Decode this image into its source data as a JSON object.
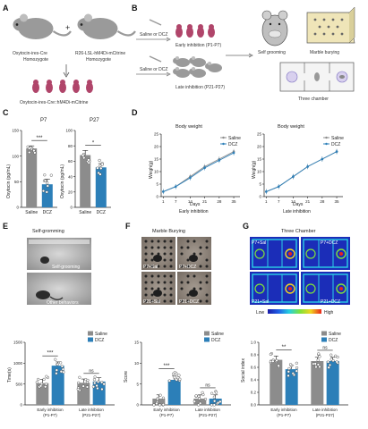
{
  "panel_letters": [
    "A",
    "B",
    "C",
    "D",
    "E",
    "F",
    "G"
  ],
  "A": {
    "mouse1": "Oxytocin-ires-Cre",
    "mouse1_sub": "Homozygote",
    "plus": "+",
    "mouse2": "R26-LSL-hM4Di-mCitrine",
    "mouse2_sub": "Homozygote",
    "offspring": "Oxytocin-ires-Cre::hM4Di-mCitrine"
  },
  "B": {
    "treat_early": "Saline or DCZ",
    "treat_late": "Saline or DCZ",
    "early_label": "Early inhibition (P1-P7)",
    "late_label": "Late inhibition (P21-P27)",
    "test1": "Self grooming",
    "test2": "Marble burying",
    "test3": "Three chamber"
  },
  "colors": {
    "saline": "#8c8c8c",
    "dcz": "#2c7fb8"
  },
  "C": {
    "ylabel": "Oxytocin (pg/mL)",
    "panels": [
      {
        "title": "P7",
        "sig": "***",
        "categories": [
          "Saline",
          "DCZ"
        ],
        "values": [
          115,
          45
        ],
        "errors": [
          5,
          10
        ],
        "ylim": [
          0,
          150
        ],
        "yticks": [
          "0",
          "50",
          "100",
          "150"
        ]
      },
      {
        "title": "P27",
        "sig": "*",
        "categories": [
          "Saline",
          "DCZ"
        ],
        "values": [
          68,
          52
        ],
        "errors": [
          6,
          5
        ],
        "ylim": [
          0,
          100
        ],
        "yticks": [
          "0",
          "20",
          "40",
          "60",
          "80",
          "100"
        ]
      }
    ]
  },
  "D": {
    "ylabel": "Weigh(g)",
    "xlabel": "Days",
    "legend": [
      "Saline",
      "DCZ"
    ],
    "panels": [
      {
        "title": "Body weight",
        "subtitle": "Early inhibition"
      },
      {
        "title": "Body weight",
        "subtitle": "Late inhibition"
      }
    ]
  },
  "E": {
    "title": "Self-gromming",
    "photo_labels": [
      "Self-grooming",
      "Other behaviors"
    ]
  },
  "F": {
    "title": "Marble Burying",
    "photo_labels": [
      "P7+Sal",
      "P7+DCZ",
      "P21+Sal",
      "P21+DCZ"
    ]
  },
  "G": {
    "title": "Three Chamber",
    "photo_labels": [
      "P7+Sal",
      "P7+DCZ",
      "P21+Sal",
      "P21+DCZ"
    ],
    "scale_low": "Low",
    "scale_high": "High"
  },
  "chart_data": [
    {
      "type": "bar",
      "panel": "C-P7",
      "title": "P7",
      "ylabel": "Oxytocin (pg/mL)",
      "categories": [
        "Saline",
        "DCZ"
      ],
      "values": [
        115,
        45
      ],
      "ylim": [
        0,
        150
      ]
    },
    {
      "type": "bar",
      "panel": "C-P27",
      "title": "P27",
      "ylabel": "Oxytocin (pg/mL)",
      "categories": [
        "Saline",
        "DCZ"
      ],
      "values": [
        68,
        52
      ],
      "ylim": [
        0,
        100
      ]
    },
    {
      "type": "line",
      "panel": "D-early",
      "title": "Body weight",
      "xlabel": "Days",
      "ylabel": "Weigh(g)",
      "x": [
        1,
        7,
        14,
        21,
        28,
        35
      ],
      "xticks": [
        "1",
        "7",
        "14",
        "21",
        "28",
        "35"
      ],
      "ylim": [
        0,
        25
      ],
      "yticks": [
        "0",
        "5",
        "10",
        "15",
        "20",
        "25"
      ],
      "series": [
        {
          "name": "Saline",
          "values": [
            2,
            4,
            8,
            12,
            15,
            18
          ]
        },
        {
          "name": "DCZ",
          "values": [
            2,
            4,
            7.5,
            11.5,
            14.5,
            17.5
          ]
        }
      ]
    },
    {
      "type": "line",
      "panel": "D-late",
      "title": "Body weight",
      "xlabel": "Days",
      "ylabel": "Weigh(g)",
      "x": [
        1,
        7,
        14,
        21,
        28,
        35
      ],
      "xticks": [
        "1",
        "7",
        "14",
        "21",
        "28",
        "35"
      ],
      "ylim": [
        0,
        25
      ],
      "yticks": [
        "0",
        "5",
        "10",
        "15",
        "20",
        "25"
      ],
      "series": [
        {
          "name": "Saline",
          "values": [
            2,
            4,
            8,
            12,
            15,
            18
          ]
        },
        {
          "name": "DCZ",
          "values": [
            2,
            4,
            8,
            12,
            15,
            18
          ]
        }
      ]
    },
    {
      "type": "bar",
      "panel": "E",
      "ylabel": "Time(s)",
      "categories": [
        "Early inhibition (P1-P7)",
        "Late inhibition (P21-P27)"
      ],
      "series": [
        {
          "name": "Saline",
          "values": [
            520,
            530
          ]
        },
        {
          "name": "DCZ",
          "values": [
            940,
            560
          ]
        }
      ],
      "ylim": [
        0,
        1500
      ],
      "yticks": [
        "0",
        "500",
        "1000",
        "1500"
      ],
      "sig": [
        "***",
        "ns"
      ]
    },
    {
      "type": "bar",
      "panel": "F",
      "ylabel": "Score",
      "categories": [
        "Early inhibition (P1-P7)",
        "Late inhibition (P21-P27)"
      ],
      "series": [
        {
          "name": "Saline",
          "values": [
            1.5,
            1.5
          ]
        },
        {
          "name": "DCZ",
          "values": [
            6,
            1.5
          ]
        }
      ],
      "ylim": [
        0,
        15
      ],
      "yticks": [
        "0",
        "5",
        "10",
        "15"
      ],
      "sig": [
        "***",
        "ns"
      ]
    },
    {
      "type": "bar",
      "panel": "G",
      "ylabel": "Social index",
      "categories": [
        "Early inhibition (P1-P7)",
        "Late inhibition (P21-P27)"
      ],
      "series": [
        {
          "name": "Saline",
          "values": [
            0.72,
            0.7
          ]
        },
        {
          "name": "DCZ",
          "values": [
            0.57,
            0.7
          ]
        }
      ],
      "ylim": [
        0,
        1.0
      ],
      "yticks": [
        "0.0",
        "0.2",
        "0.4",
        "0.6",
        "0.8",
        "1.0"
      ],
      "sig": [
        "**",
        "ns"
      ]
    }
  ]
}
